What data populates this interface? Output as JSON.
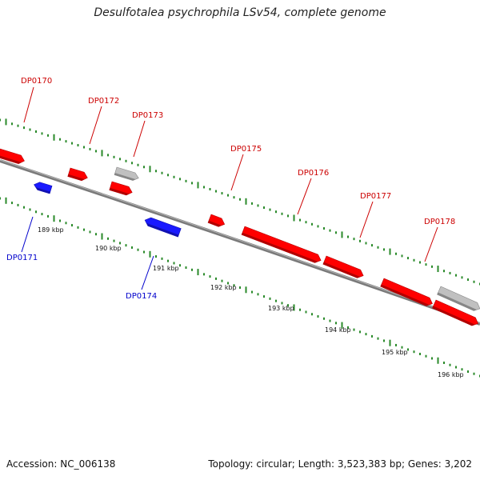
{
  "title": "Desulfotalea psychrophila LSv54, complete genome",
  "footer": {
    "accession": "Accession: NC_006138",
    "summary": "Topology: circular; Length: 3,523,383 bp; Genes: 3,202"
  },
  "colors": {
    "forward_gene": "#ff0000",
    "reverse_gene": "#1a1aff",
    "other_feature": "#c0c0c0",
    "backbone": "#7a7a7a",
    "ticks": "#2a8a2a",
    "label_forward": "#cc0000",
    "label_reverse": "#0000cc"
  },
  "scale": {
    "unit": "kbp",
    "labels": [
      "189 kbp",
      "190 kbp",
      "191 kbp",
      "192 kbp",
      "193 kbp",
      "194 kbp",
      "195 kbp",
      "196 kbp"
    ]
  },
  "genes": [
    {
      "name": "",
      "strand": "forward",
      "type": "gene"
    },
    {
      "name": "DP0170",
      "strand": "forward",
      "type": "gene"
    },
    {
      "name": "DP0171",
      "strand": "reverse",
      "type": "gene"
    },
    {
      "name": "DP0172",
      "strand": "forward",
      "type": "gene"
    },
    {
      "name": "DP0173",
      "strand": "forward",
      "type": "other"
    },
    {
      "name": "",
      "strand": "forward",
      "type": "gene"
    },
    {
      "name": "DP0174",
      "strand": "reverse",
      "type": "gene"
    },
    {
      "name": "DP0175",
      "strand": "forward",
      "type": "gene"
    },
    {
      "name": "DP0176",
      "strand": "forward",
      "type": "gene"
    },
    {
      "name": "DP0177",
      "strand": "forward",
      "type": "gene"
    },
    {
      "name": "DP0178",
      "strand": "forward",
      "type": "gene"
    },
    {
      "name": "",
      "strand": "forward",
      "type": "other"
    },
    {
      "name": "",
      "strand": "forward",
      "type": "gene"
    }
  ]
}
